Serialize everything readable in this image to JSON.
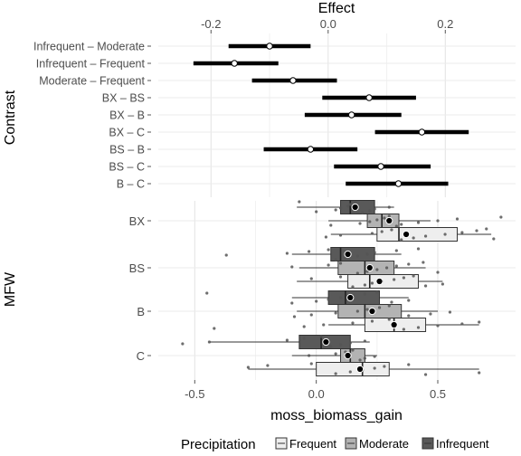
{
  "chart_data": [
    {
      "type": "forest",
      "title": "",
      "xlabel": "Effect",
      "ylabel": "Contrast",
      "xlim": [
        -0.29,
        0.32
      ],
      "xticks": [
        -0.2,
        0.0,
        0.2
      ],
      "xtick_labels": [
        "-0.2",
        "0.0",
        "0.2"
      ],
      "grid": true,
      "axis_position": "top",
      "rows": [
        {
          "label": "Infrequent – Moderate",
          "estimate": -0.1,
          "lower": -0.17,
          "upper": -0.03
        },
        {
          "label": "Infrequent – Frequent",
          "estimate": -0.16,
          "lower": -0.23,
          "upper": -0.085
        },
        {
          "label": "Moderate – Frequent",
          "estimate": -0.06,
          "lower": -0.13,
          "upper": 0.015
        },
        {
          "label": "BX – BS",
          "estimate": 0.07,
          "lower": -0.01,
          "upper": 0.15
        },
        {
          "label": "BX – B",
          "estimate": 0.04,
          "lower": -0.04,
          "upper": 0.125
        },
        {
          "label": "BX – C",
          "estimate": 0.16,
          "lower": 0.08,
          "upper": 0.24
        },
        {
          "label": "BS – B",
          "estimate": -0.03,
          "lower": -0.11,
          "upper": 0.05
        },
        {
          "label": "BS – C",
          "estimate": 0.09,
          "lower": 0.01,
          "upper": 0.175
        },
        {
          "label": "B – C",
          "estimate": 0.12,
          "lower": 0.03,
          "upper": 0.205
        }
      ]
    },
    {
      "type": "boxplot",
      "title": "",
      "xlabel": "moss_biomass_gain",
      "ylabel": "MFW",
      "xlim": [
        -0.65,
        0.82
      ],
      "xticks": [
        -0.5,
        0.0,
        0.5
      ],
      "xtick_labels": [
        "-0.5",
        "0.0",
        "0.5"
      ],
      "grid": true,
      "categories": [
        "BX",
        "BS",
        "B",
        "C"
      ],
      "legend": {
        "title": "Precipitation",
        "position": "bottom",
        "entries": [
          {
            "name": "Frequent",
            "color": "#eeeeee"
          },
          {
            "name": "Moderate",
            "color": "#b3b3b3"
          },
          {
            "name": "Infrequent",
            "color": "#595959"
          }
        ]
      },
      "groups": [
        {
          "category": "BX",
          "series": "Infrequent",
          "min": -0.08,
          "q1": 0.1,
          "median": 0.14,
          "q3": 0.24,
          "max": 0.32,
          "mean": 0.16,
          "points": [
            -0.07,
            0.0,
            0.08,
            0.1,
            0.13,
            0.14,
            0.16,
            0.19,
            0.22,
            0.24,
            0.3
          ]
        },
        {
          "category": "BX",
          "series": "Moderate",
          "min": 0.05,
          "q1": 0.21,
          "median": 0.27,
          "q3": 0.34,
          "max": 0.47,
          "mean": 0.3,
          "points": [
            0.06,
            0.18,
            0.22,
            0.25,
            0.28,
            0.3,
            0.33,
            0.35,
            0.42,
            0.5,
            0.58,
            0.76
          ]
        },
        {
          "category": "BX",
          "series": "Frequent",
          "min": 0.06,
          "q1": 0.25,
          "median": 0.34,
          "q3": 0.58,
          "max": 0.72,
          "mean": 0.37,
          "points": [
            0.04,
            0.1,
            0.23,
            0.27,
            0.31,
            0.35,
            0.4,
            0.45,
            0.53,
            0.6,
            0.66,
            0.7,
            0.73
          ]
        },
        {
          "category": "BS",
          "series": "Infrequent",
          "min": -0.1,
          "q1": 0.06,
          "median": 0.1,
          "q3": 0.24,
          "max": 0.35,
          "mean": 0.13,
          "points": [
            -0.37,
            -0.12,
            -0.03,
            0.05,
            0.08,
            0.12,
            0.17,
            0.21,
            0.24,
            0.33,
            0.42
          ]
        },
        {
          "category": "BS",
          "series": "Moderate",
          "min": -0.07,
          "q1": 0.09,
          "median": 0.2,
          "q3": 0.32,
          "max": 0.45,
          "mean": 0.22,
          "points": [
            -0.1,
            0.05,
            0.1,
            0.17,
            0.21,
            0.25,
            0.29,
            0.33,
            0.38,
            0.44,
            0.5
          ]
        },
        {
          "category": "BS",
          "series": "Frequent",
          "min": -0.08,
          "q1": 0.13,
          "median": 0.22,
          "q3": 0.42,
          "max": 0.52,
          "mean": 0.26,
          "points": [
            -0.02,
            0.1,
            0.15,
            0.2,
            0.23,
            0.27,
            0.32,
            0.36,
            0.4,
            0.45,
            0.52
          ]
        },
        {
          "category": "B",
          "series": "Infrequent",
          "min": -0.1,
          "q1": 0.05,
          "median": 0.12,
          "q3": 0.26,
          "max": 0.38,
          "mean": 0.14,
          "points": [
            -0.45,
            -0.1,
            0.0,
            0.05,
            0.1,
            0.15,
            0.2,
            0.25,
            0.31,
            0.38
          ]
        },
        {
          "category": "B",
          "series": "Moderate",
          "min": -0.08,
          "q1": 0.09,
          "median": 0.2,
          "q3": 0.35,
          "max": 0.5,
          "mean": 0.23,
          "points": [
            -0.09,
            -0.02,
            0.08,
            0.17,
            0.21,
            0.26,
            0.3,
            0.38,
            0.47,
            0.55
          ]
        },
        {
          "category": "B",
          "series": "Frequent",
          "min": 0.05,
          "q1": 0.2,
          "median": 0.32,
          "q3": 0.45,
          "max": 0.67,
          "mean": 0.32,
          "points": [
            -0.42,
            -0.05,
            0.03,
            0.15,
            0.23,
            0.3,
            0.36,
            0.42,
            0.5,
            0.6,
            0.67
          ]
        },
        {
          "category": "C",
          "series": "Infrequent",
          "min": -0.44,
          "q1": -0.07,
          "median": 0.02,
          "q3": 0.14,
          "max": 0.22,
          "mean": 0.04,
          "points": [
            -0.55,
            -0.44,
            -0.12,
            -0.05,
            0.02,
            0.06,
            0.1,
            0.14,
            0.2
          ]
        },
        {
          "category": "C",
          "series": "Moderate",
          "min": -0.1,
          "q1": 0.1,
          "median": 0.14,
          "q3": 0.2,
          "max": 0.25,
          "mean": 0.13,
          "points": [
            -0.03,
            0.08,
            0.12,
            0.15,
            0.18,
            0.2,
            0.24
          ]
        },
        {
          "category": "C",
          "series": "Frequent",
          "min": -0.28,
          "q1": 0.0,
          "median": 0.19,
          "q3": 0.3,
          "max": 0.67,
          "mean": 0.18,
          "points": [
            -0.28,
            -0.2,
            -0.02,
            0.08,
            0.14,
            0.19,
            0.24,
            0.28,
            0.38,
            0.45,
            0.67
          ]
        }
      ]
    }
  ]
}
